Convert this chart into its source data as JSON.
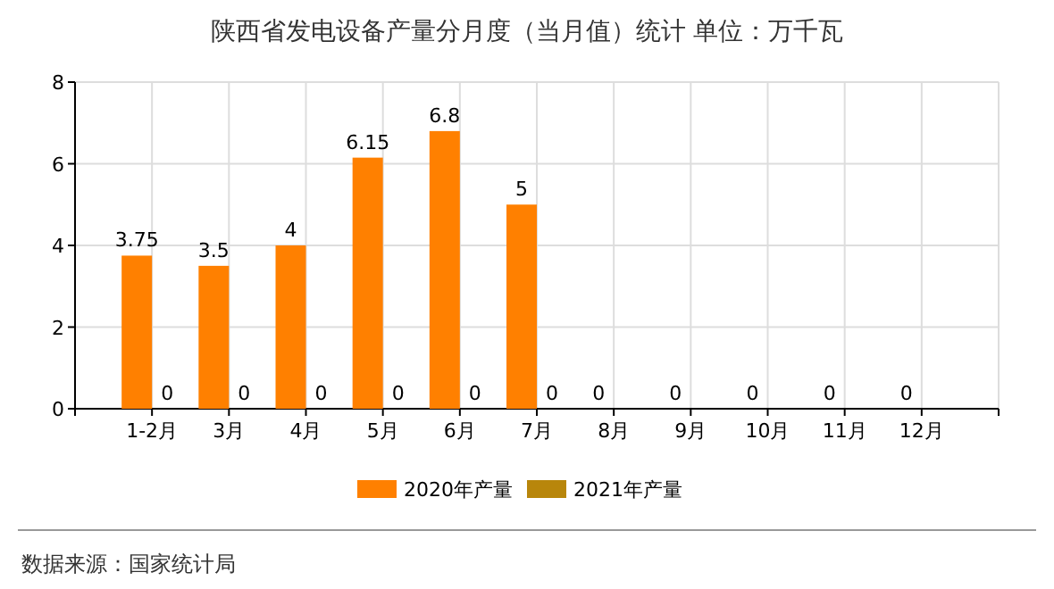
{
  "chart_data": {
    "type": "bar",
    "title": "陕西省发电设备产量分月度（当月值）统计 单位：万千瓦",
    "categories": [
      "1-2月",
      "3月",
      "4月",
      "5月",
      "6月",
      "7月",
      "8月",
      "9月",
      "10月",
      "11月",
      "12月"
    ],
    "series": [
      {
        "name": "2020年产量",
        "color": "#ff8000",
        "values": [
          3.75,
          3.5,
          4,
          6.15,
          6.8,
          5,
          0,
          0,
          0,
          0,
          0
        ]
      },
      {
        "name": "2021年产量",
        "color": "#b8860b",
        "values": [
          0,
          0,
          0,
          0,
          0,
          0,
          null,
          null,
          null,
          null,
          null
        ]
      }
    ],
    "ylim": [
      0,
      8
    ],
    "yticks": [
      0,
      2,
      4,
      6,
      8
    ],
    "grid": true,
    "legend": "bottom",
    "data_labels": true,
    "annotations": [
      "数据来源：国家统计局"
    ]
  }
}
